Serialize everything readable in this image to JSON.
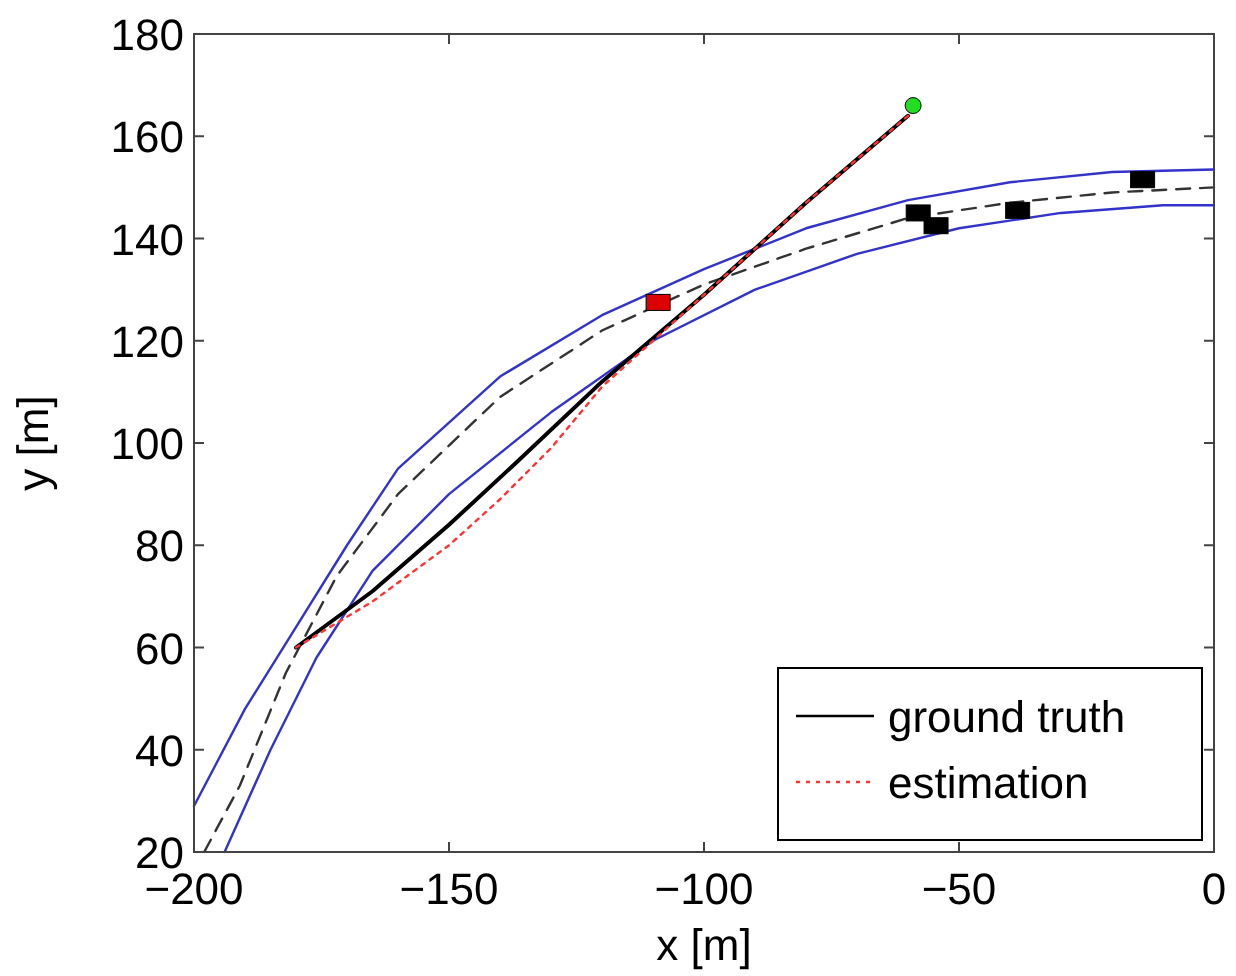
{
  "chart_data": {
    "type": "line",
    "xlabel": "x [m]",
    "ylabel": "y [m]",
    "xlim": [
      -200,
      0
    ],
    "ylim": [
      20,
      180
    ],
    "xticks": [
      -200,
      -150,
      -100,
      -50,
      0
    ],
    "yticks": [
      20,
      40,
      60,
      80,
      100,
      120,
      140,
      160,
      180
    ],
    "grid": false,
    "legend": "bottom right",
    "marker": "none",
    "series": [
      {
        "type": "line",
        "color": "#3333cc",
        "line_style": "solid",
        "x": [
          -200,
          -190,
          -180,
          -170,
          -160,
          -140,
          -120,
          -100,
          -80,
          -60,
          -40,
          -20,
          0
        ],
        "values": [
          29,
          48,
          64,
          80,
          95,
          113,
          125,
          134,
          142,
          147.5,
          151,
          153,
          153.5
        ]
      },
      {
        "type": "line",
        "color": "#3333cc",
        "line_style": "solid",
        "x": [
          -194,
          -185,
          -176,
          -165,
          -150,
          -130,
          -110,
          -90,
          -70,
          -50,
          -30,
          -10,
          0
        ],
        "values": [
          20,
          40,
          58,
          75,
          90,
          106,
          120,
          130,
          137,
          142,
          145,
          146.5,
          146.5
        ]
      },
      {
        "type": "line",
        "color": "#333333",
        "line_style": "dashed",
        "x": [
          -198,
          -191,
          -182,
          -172,
          -160,
          -140,
          -120,
          -100,
          -80,
          -60,
          -40,
          -20,
          0
        ],
        "values": [
          20,
          33,
          55,
          74,
          90,
          109,
          122,
          131,
          138,
          144,
          147,
          149,
          150
        ]
      },
      {
        "name": "ground truth",
        "color": "#000000",
        "line_style": "solid",
        "x": [
          -180,
          -165,
          -150,
          -137,
          -120,
          -100,
          -80,
          -60
        ],
        "values": [
          60,
          71,
          84,
          96,
          112,
          129,
          147,
          164
        ]
      },
      {
        "name": "estimation",
        "color": "#ff3333",
        "line_style": "dotted",
        "x": [
          -180,
          -165,
          -150,
          -140,
          -130,
          -120,
          -100,
          -80,
          -60
        ],
        "values": [
          60,
          69,
          80,
          89,
          99,
          111,
          129,
          147,
          164
        ]
      },
      {
        "type": "scatter",
        "color": "#000000",
        "marker": "square",
        "x": [
          -58,
          -54.5,
          -38.5,
          -14
        ],
        "values": [
          145,
          142.5,
          145.5,
          151.5
        ]
      },
      {
        "type": "scatter",
        "color": "#dd0000",
        "marker": "square",
        "x": [
          -109
        ],
        "values": [
          127.5
        ]
      },
      {
        "type": "scatter",
        "color": "#22dd22",
        "marker": "circle",
        "x": [
          -59
        ],
        "values": [
          166
        ]
      }
    ]
  }
}
